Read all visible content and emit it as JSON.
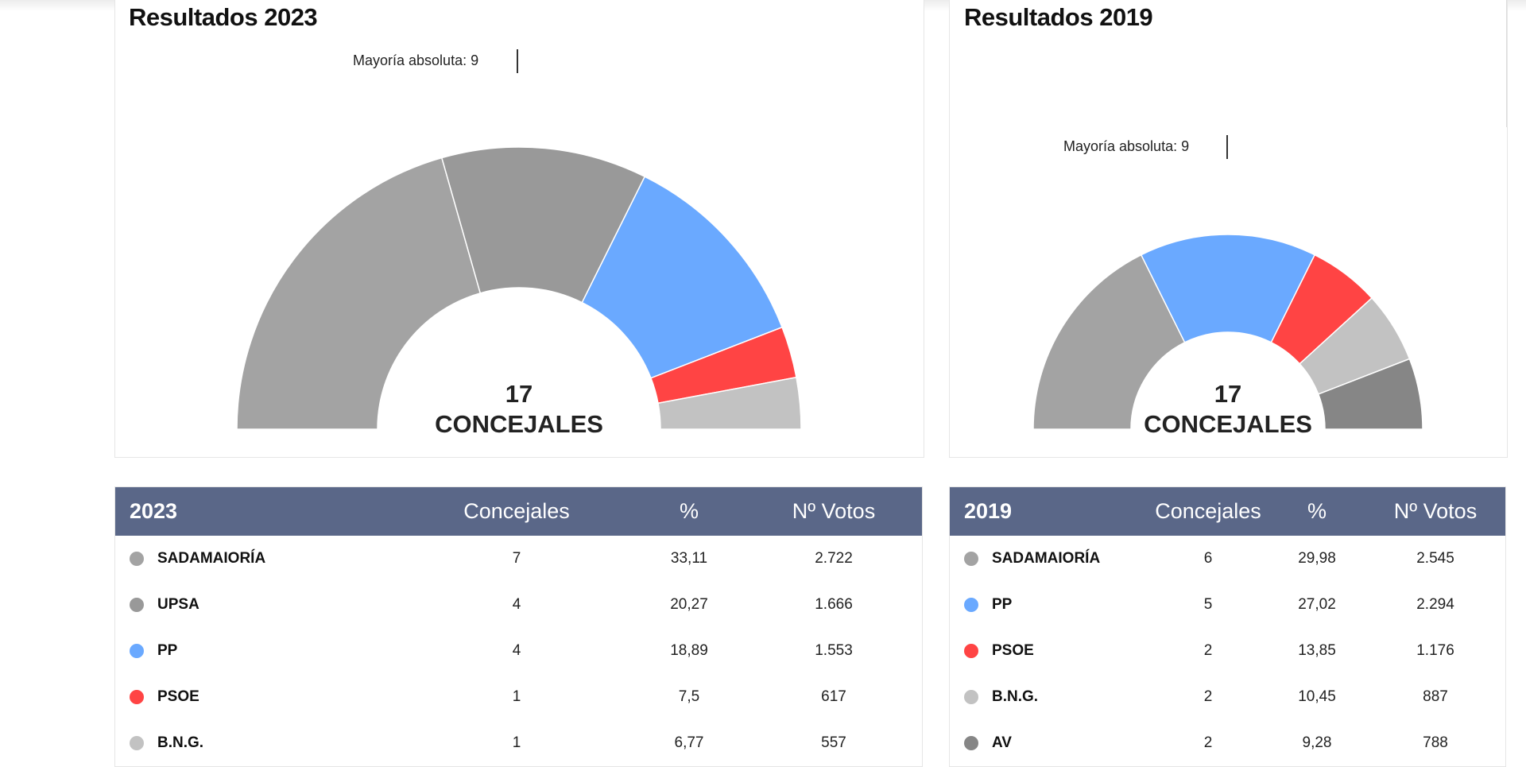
{
  "results": [
    {
      "title": "Resultados 2023",
      "majority_label": "Mayoría absoluta: 9",
      "total_seats": "17",
      "seats_label": "CONCEJALES",
      "table": {
        "year": "2023",
        "headers": [
          "Concejales",
          "%",
          "Nº Votos"
        ],
        "rows": [
          {
            "party": "SADAMAIORÍA",
            "seats": "7",
            "percent": "33,11",
            "votes": "2.722",
            "color": "#a3a3a3"
          },
          {
            "party": "UPSA",
            "seats": "4",
            "percent": "20,27",
            "votes": "1.666",
            "color": "#999999"
          },
          {
            "party": "PP",
            "seats": "4",
            "percent": "18,89",
            "votes": "1.553",
            "color": "#6aa9ff"
          },
          {
            "party": "PSOE",
            "seats": "1",
            "percent": "7,5",
            "votes": "617",
            "color": "#ff4444"
          },
          {
            "party": "B.N.G.",
            "seats": "1",
            "percent": "6,77",
            "votes": "557",
            "color": "#c2c2c2"
          }
        ]
      }
    },
    {
      "title": "Resultados 2019",
      "majority_label": "Mayoría absoluta: 9",
      "total_seats": "17",
      "seats_label": "CONCEJALES",
      "table": {
        "year": "2019",
        "headers": [
          "Concejales",
          "%",
          "Nº Votos"
        ],
        "rows": [
          {
            "party": "SADAMAIORÍA",
            "seats": "6",
            "percent": "29,98",
            "votes": "2.545",
            "color": "#a3a3a3"
          },
          {
            "party": "PP",
            "seats": "5",
            "percent": "27,02",
            "votes": "2.294",
            "color": "#6aa9ff"
          },
          {
            "party": "PSOE",
            "seats": "2",
            "percent": "13,85",
            "votes": "1.176",
            "color": "#ff4444"
          },
          {
            "party": "B.N.G.",
            "seats": "2",
            "percent": "10,45",
            "votes": "887",
            "color": "#c2c2c2"
          },
          {
            "party": "AV",
            "seats": "2",
            "percent": "9,28",
            "votes": "788",
            "color": "#868686"
          }
        ]
      }
    }
  ]
}
